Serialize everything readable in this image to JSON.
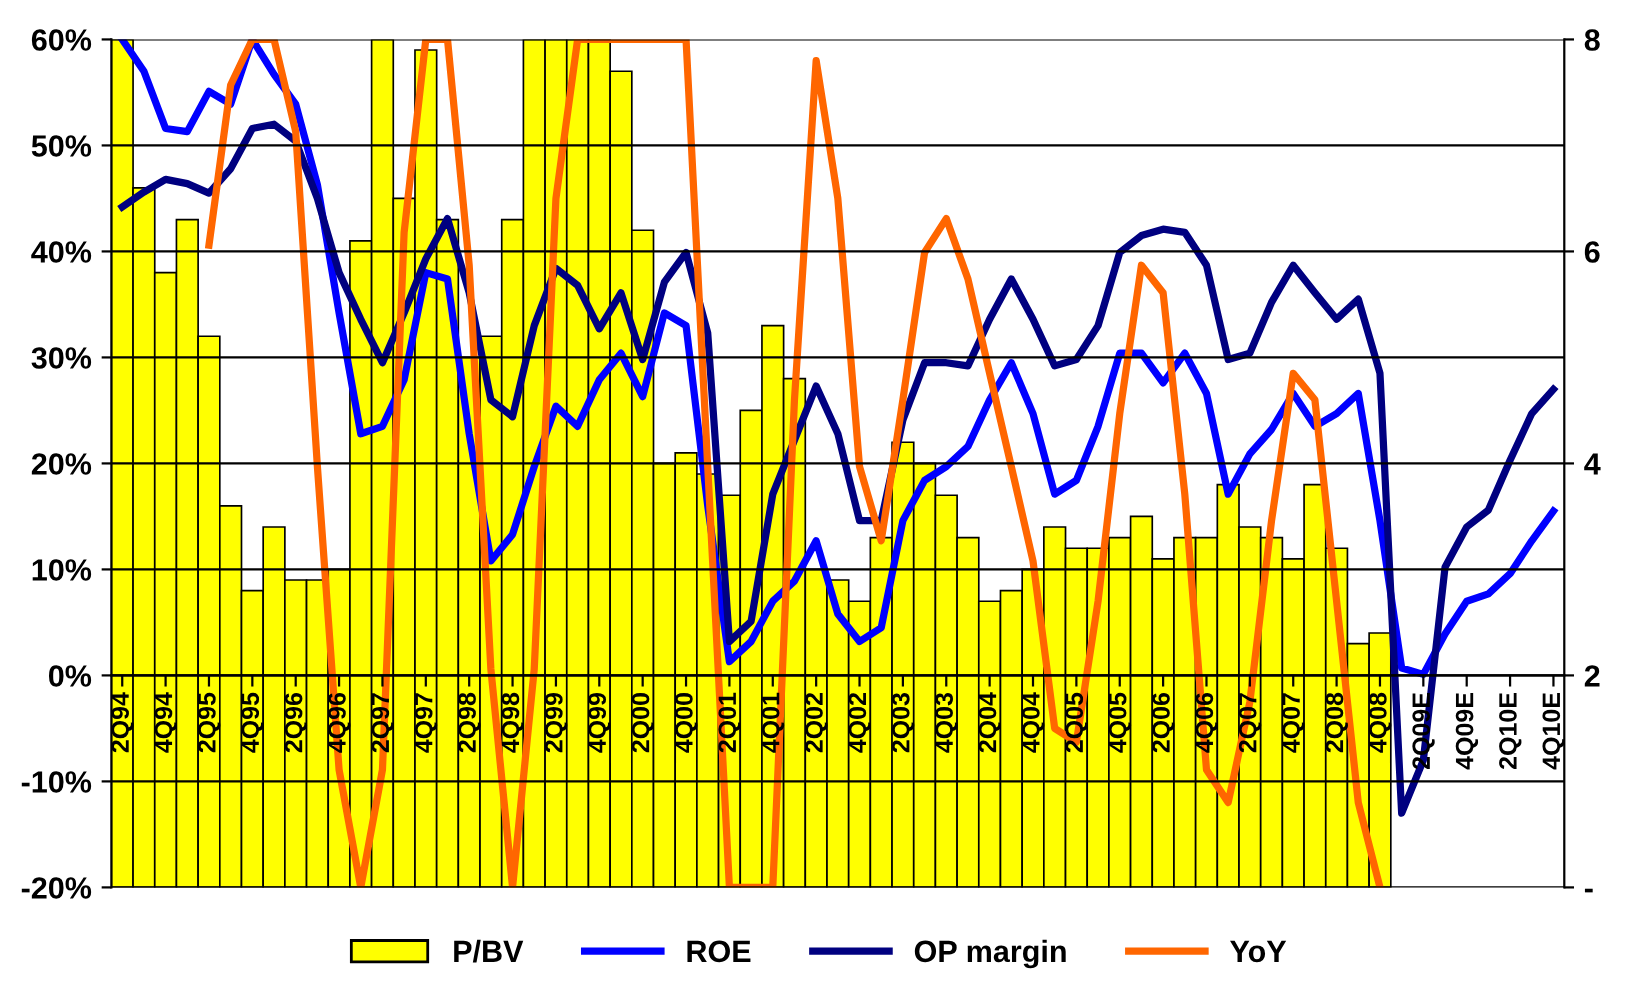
{
  "chart_data": {
    "type": "line",
    "categories": [
      "2Q94",
      null,
      "4Q94",
      null,
      "2Q95",
      null,
      "4Q95",
      null,
      "2Q96",
      null,
      "4Q96",
      null,
      "2Q97",
      null,
      "4Q97",
      null,
      "2Q98",
      null,
      "4Q98",
      null,
      "2Q99",
      null,
      "4Q99",
      null,
      "2Q00",
      null,
      "4Q00",
      null,
      "2Q01",
      null,
      "4Q01",
      null,
      "2Q02",
      null,
      "4Q02",
      null,
      "2Q03",
      null,
      "4Q03",
      null,
      "2Q04",
      null,
      "4Q04",
      null,
      "2Q05",
      null,
      "4Q05",
      null,
      "2Q06",
      null,
      "4Q06",
      null,
      "2Q07",
      null,
      "4Q07",
      null,
      "2Q08",
      null,
      "4Q08",
      null,
      "2Q09E",
      null,
      "4Q09E",
      null,
      "2Q10E",
      null,
      "4Q10E"
    ],
    "series": [
      {
        "name": "P/BV",
        "type": "bar",
        "axis": "y2",
        "color": "#ffff00",
        "values": [
          8,
          6.6,
          5.8,
          6.3,
          5.2,
          3.6,
          2.8,
          3.4,
          2.9,
          2.9,
          3.0,
          6.1,
          8,
          6.5,
          7.9,
          6.3,
          5.0,
          5.2,
          6.3,
          8,
          8,
          8,
          8,
          7.7,
          6.2,
          4.0,
          4.1,
          3.9,
          3.7,
          4.5,
          5.3,
          4.8,
          3.0,
          2.9,
          2.7,
          3.3,
          4.2,
          4.0,
          3.7,
          3.3,
          2.7,
          2.8,
          3.0,
          3.4,
          3.2,
          3.2,
          3.3,
          3.5,
          3.1,
          3.3,
          3.3,
          3.8,
          3.4,
          3.3,
          3.1,
          3.8,
          3.2,
          2.3,
          2.4,
          null,
          null,
          null,
          null,
          null,
          null,
          null,
          null
        ]
      },
      {
        "name": "ROE",
        "color": "#0000ff",
        "values": [
          60,
          57,
          51.6,
          51.3,
          55.1,
          53.9,
          60,
          56.7,
          53.9,
          46.3,
          34.2,
          22.8,
          23.5,
          27.9,
          38,
          37.4,
          22.8,
          10.8,
          13.3,
          19.7,
          25.4,
          23.5,
          27.9,
          30.4,
          26.3,
          34.2,
          33,
          16,
          1.3,
          3.2,
          7,
          8.9,
          12.7,
          5.8,
          3.2,
          4.5,
          14.6,
          18.4,
          19.7,
          21.6,
          26,
          29.5,
          24.7,
          17.1,
          18.4,
          23.5,
          30.4,
          30.4,
          27.6,
          30.4,
          26.6,
          17.1,
          20.9,
          23.2,
          26.6,
          23.5,
          24.7,
          26.6,
          14.6,
          0.7,
          0.1,
          3.9,
          7,
          7.7,
          9.6,
          12.7,
          15.5
        ]
      },
      {
        "name": "OP margin",
        "color": "#000080",
        "values": [
          44.2,
          45.6,
          46.8,
          46.4,
          45.5,
          47.8,
          51.6,
          52,
          50.4,
          45,
          38,
          33.6,
          29.5,
          34.2,
          39.3,
          43.1,
          36.1,
          26,
          24.4,
          33,
          38.4,
          36.8,
          32.7,
          36.1,
          29.8,
          37.1,
          39.9,
          32.3,
          3.2,
          5.1,
          17.1,
          22.2,
          27.3,
          22.8,
          14.6,
          14.6,
          24.1,
          29.5,
          29.5,
          29.2,
          33.6,
          37.4,
          33.6,
          29.2,
          29.8,
          33,
          39.9,
          41.5,
          42.1,
          41.8,
          38.7,
          29.8,
          30.4,
          35.2,
          38.7,
          36.1,
          33.6,
          35.5,
          28.5,
          -13,
          -8,
          10.2,
          14,
          15.6,
          20.3,
          24.7,
          27
        ]
      },
      {
        "name": "YoY",
        "color": "#ff6600",
        "values": [
          null,
          null,
          null,
          null,
          40.6,
          55.7,
          60,
          60,
          51.3,
          19.7,
          -8.9,
          -20,
          -8.9,
          41.8,
          60,
          60,
          38.7,
          0.6,
          -20,
          0.6,
          45,
          60,
          60,
          60,
          60,
          60,
          60,
          19.7,
          -20,
          -20,
          -20,
          26,
          58,
          45,
          19.7,
          12.7,
          26,
          39.9,
          43.1,
          37.4,
          28.5,
          19.7,
          10.8,
          -5,
          -6.3,
          7,
          24.7,
          38.7,
          36.1,
          17.1,
          -8.9,
          -12,
          -2.5,
          14.6,
          28.5,
          26,
          7,
          -12,
          -20,
          null,
          null,
          null,
          null,
          null,
          null,
          null,
          null
        ]
      }
    ],
    "ylim": [
      -20,
      60
    ],
    "yticks": [
      {
        "value": -20,
        "label": "-20%"
      },
      {
        "value": -10,
        "label": "-10%"
      },
      {
        "value": 0,
        "label": "0%"
      },
      {
        "value": 10,
        "label": "10%"
      },
      {
        "value": 20,
        "label": "20%"
      },
      {
        "value": 30,
        "label": "30%"
      },
      {
        "value": 40,
        "label": "40%"
      },
      {
        "value": 50,
        "label": "50%"
      },
      {
        "value": 60,
        "label": "60%"
      }
    ],
    "y2lim": [
      0,
      8
    ],
    "y2ticks": [
      {
        "value": 0,
        "label": "-"
      },
      2,
      4,
      6,
      8
    ],
    "grid": "y",
    "legend": "bottom",
    "marker": "none",
    "line_style": "solid"
  }
}
